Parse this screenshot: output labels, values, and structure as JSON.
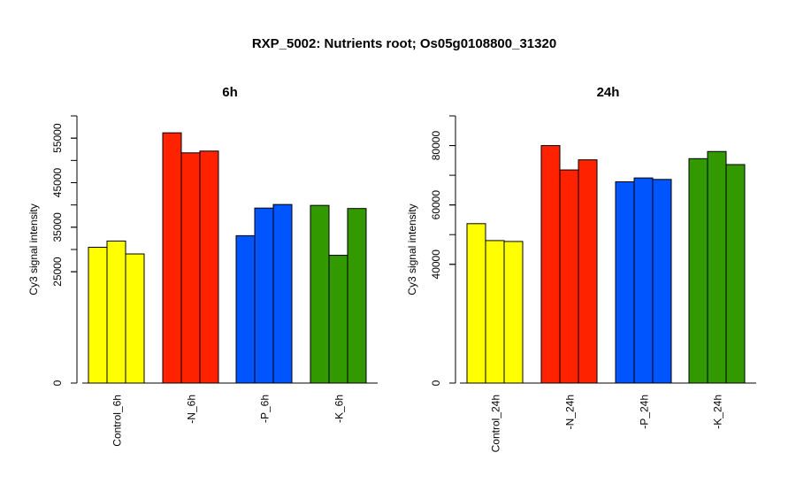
{
  "title": "RXP_5002: Nutrients root; Os05g0108800_31320",
  "colors": {
    "control": "#ffff00",
    "minus_n": "#ff2200",
    "minus_p": "#0055ff",
    "minus_k": "#339900"
  },
  "chart_data": [
    {
      "type": "bar",
      "title": "6h",
      "ylabel": "Cy3 signal intensity",
      "ylim": [
        0,
        60000
      ],
      "yticks": [
        0,
        25000,
        35000,
        45000,
        55000
      ],
      "categories": [
        "Control_6h",
        "-N_6h",
        "-P_6h",
        "-K_6h"
      ],
      "group_colors": [
        "#ffff00",
        "#ff2200",
        "#0055ff",
        "#339900"
      ],
      "values": [
        [
          30500,
          31900,
          29000
        ],
        [
          56200,
          51700,
          52100
        ],
        [
          33100,
          39300,
          40100
        ],
        [
          39900,
          28700,
          39200
        ]
      ]
    },
    {
      "type": "bar",
      "title": "24h",
      "ylabel": "Cy3 signal intensity",
      "ylim": [
        0,
        90000
      ],
      "yticks": [
        0,
        40000,
        60000,
        80000
      ],
      "categories": [
        "Control_24h",
        "-N_24h",
        "-P_24h",
        "-K_24h"
      ],
      "group_colors": [
        "#ffff00",
        "#ff2200",
        "#0055ff",
        "#339900"
      ],
      "values": [
        [
          53700,
          48000,
          47700
        ],
        [
          80000,
          71800,
          75200
        ],
        [
          67800,
          69100,
          68600
        ],
        [
          75600,
          78000,
          73600
        ]
      ]
    }
  ]
}
